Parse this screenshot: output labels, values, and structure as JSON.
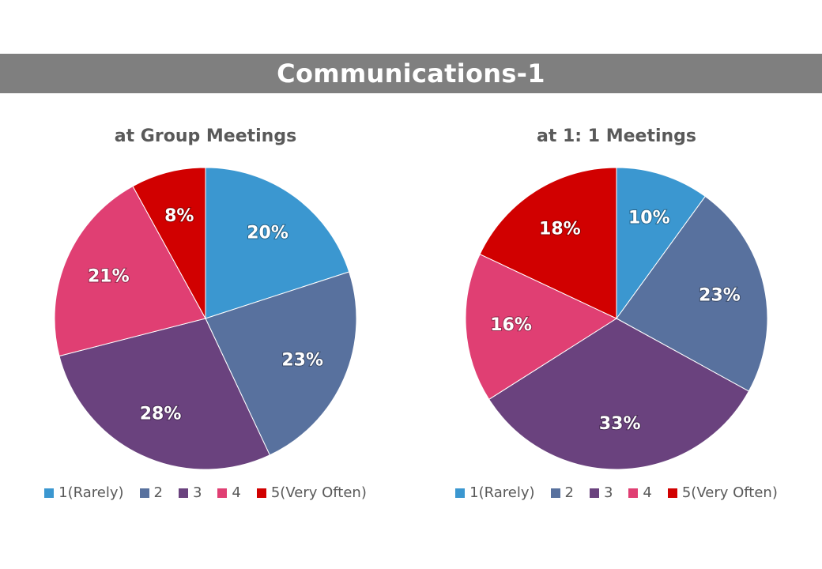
{
  "banner": {
    "title": "Communications-1"
  },
  "colors": {
    "banner_bg": "#7f7f7f",
    "slice_1": "#3b97d0",
    "slice_2": "#58719e",
    "slice_3": "#6a427e",
    "slice_4": "#e03f73",
    "slice_5": "#d10000"
  },
  "chart_data": [
    {
      "type": "pie",
      "title": "at Group Meetings",
      "categories": [
        "1(Rarely)",
        "2",
        "3",
        "4",
        "5(Very Often)"
      ],
      "values": [
        20,
        23,
        28,
        21,
        8
      ],
      "labels": [
        "20%",
        "23%",
        "28%",
        "21%",
        "8%"
      ],
      "colors": [
        "#3b97d0",
        "#58719e",
        "#6a427e",
        "#e03f73",
        "#d10000"
      ],
      "legend": "bottom"
    },
    {
      "type": "pie",
      "title": "at 1: 1 Meetings",
      "categories": [
        "1(Rarely)",
        "2",
        "3",
        "4",
        "5(Very Often)"
      ],
      "values": [
        10,
        23,
        33,
        16,
        18
      ],
      "labels": [
        "10%",
        "23%",
        "33%",
        "16%",
        "18%"
      ],
      "colors": [
        "#3b97d0",
        "#58719e",
        "#6a427e",
        "#e03f73",
        "#d10000"
      ],
      "legend": "bottom"
    }
  ]
}
